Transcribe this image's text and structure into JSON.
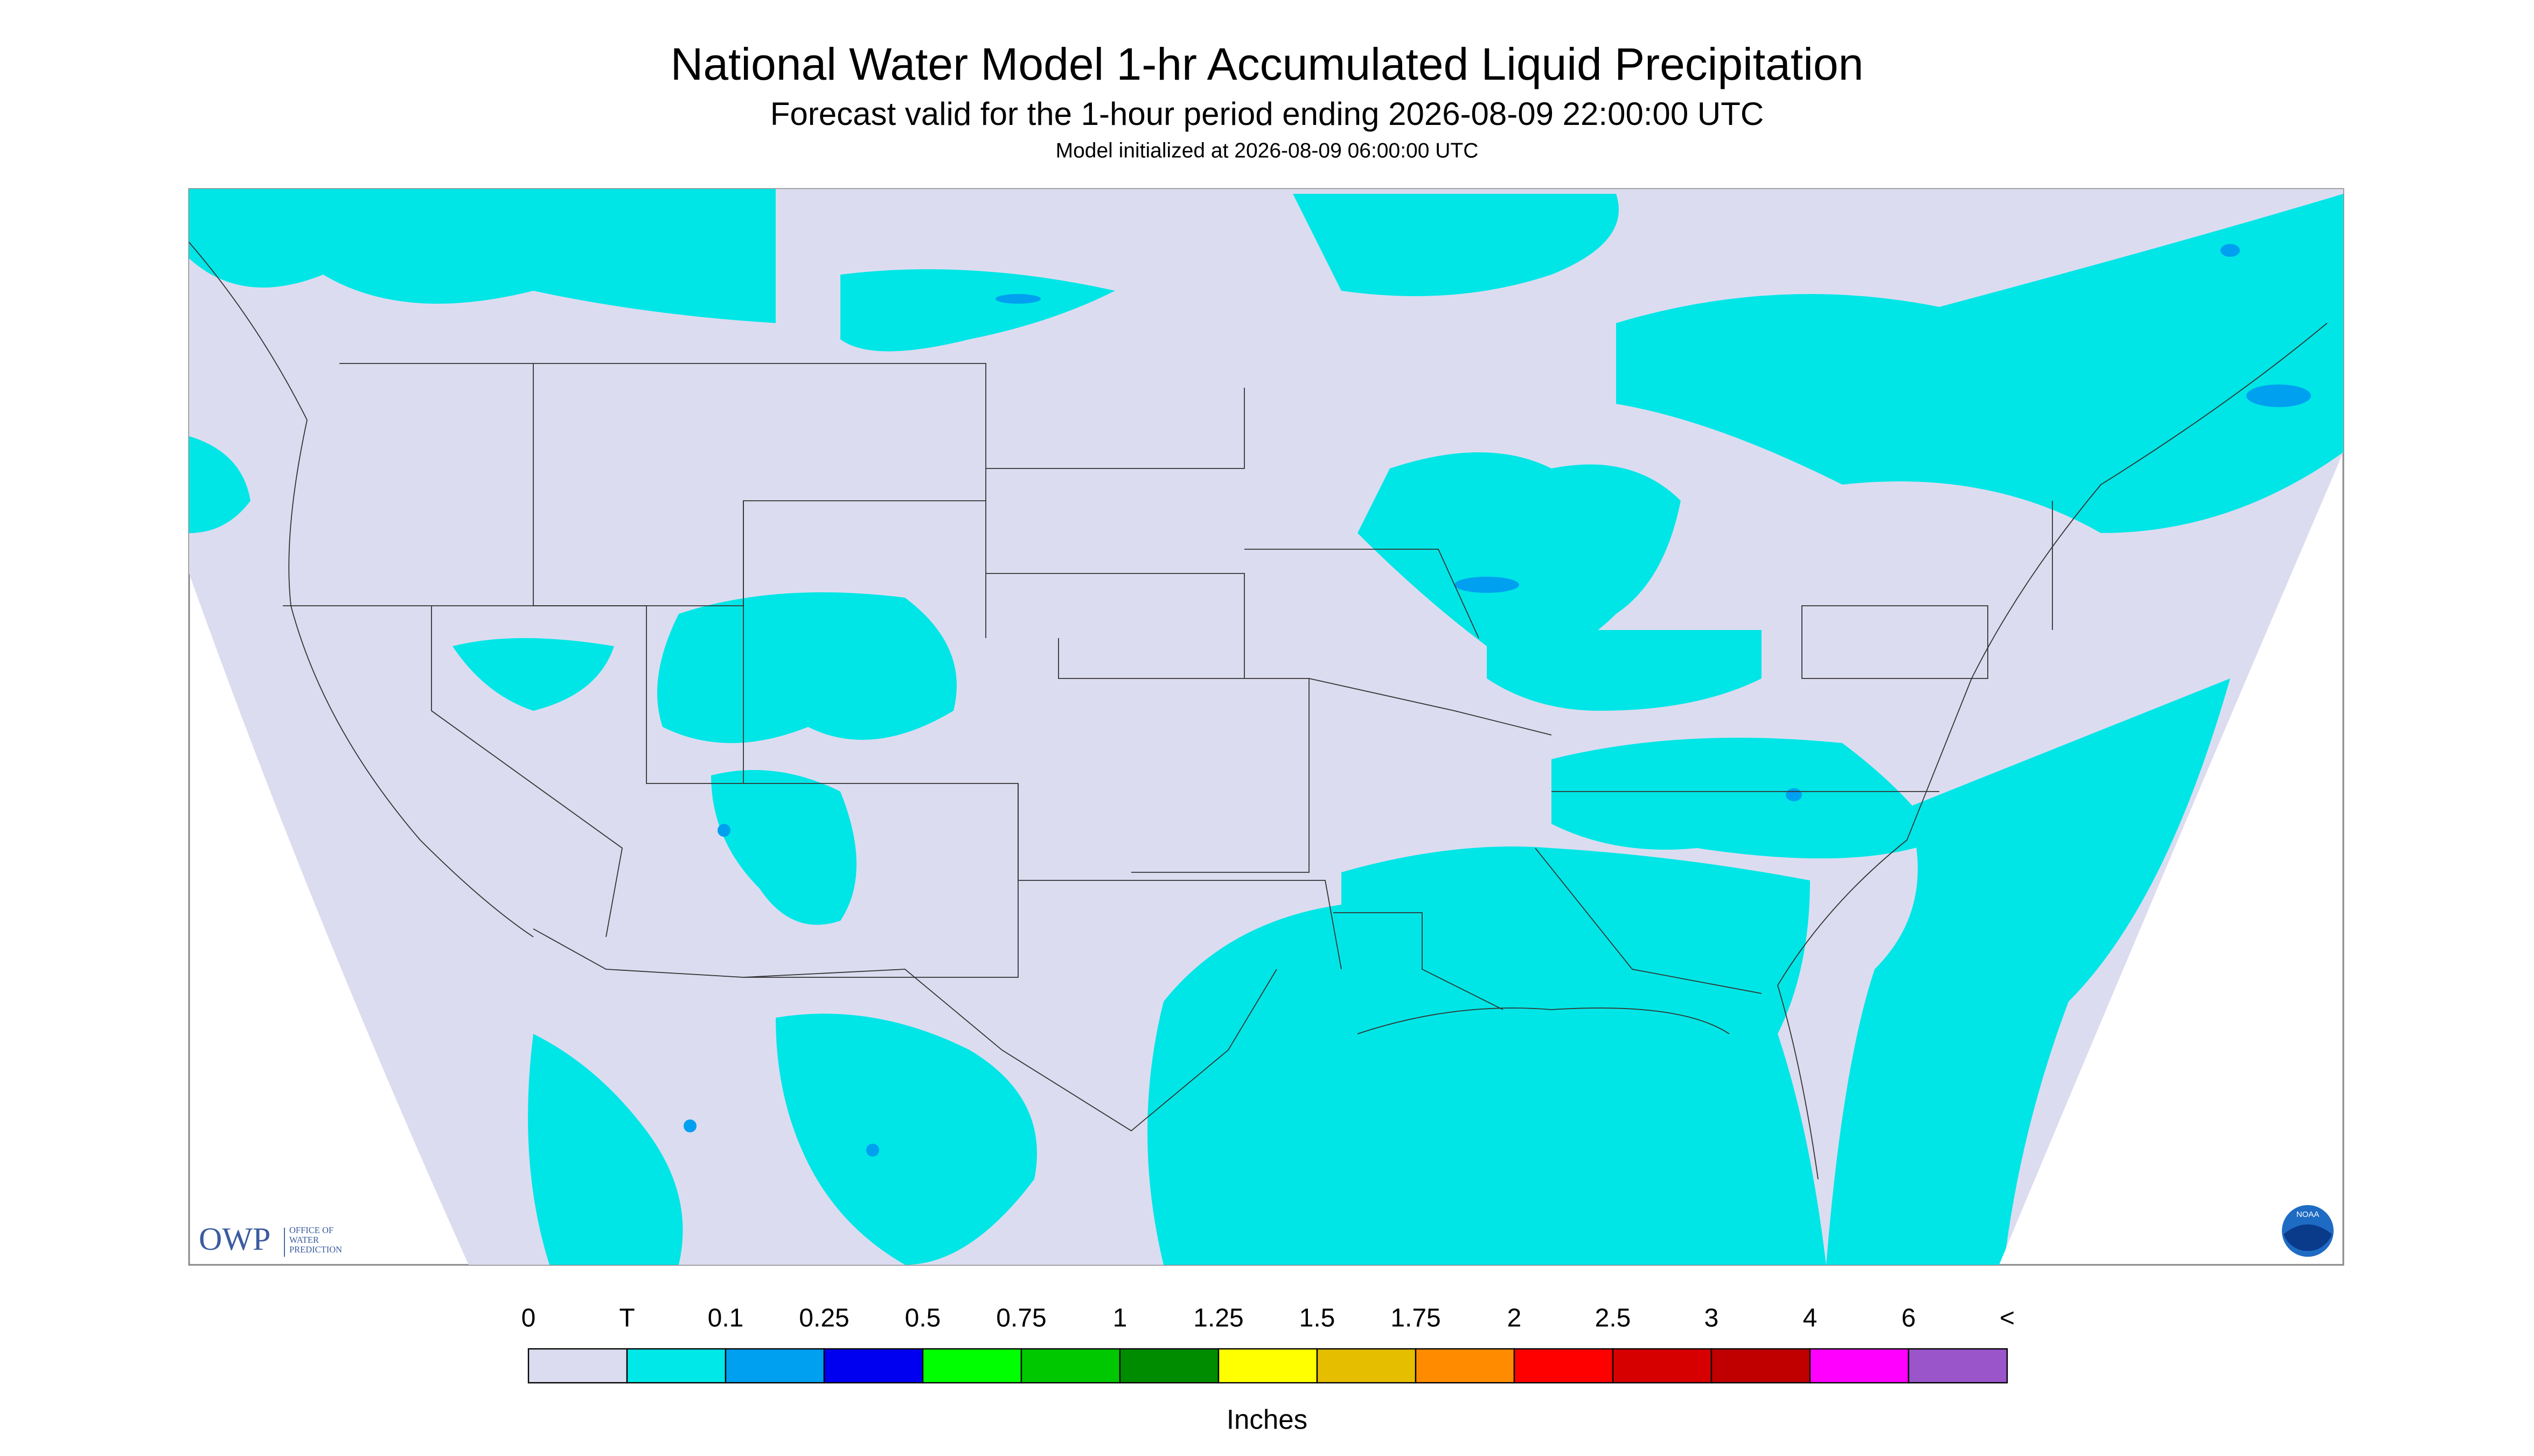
{
  "header": {
    "title": "National Water Model 1-hr Accumulated Liquid Precipitation",
    "subtitle": "Forecast valid for the 1-hour period ending 2026-08-09 22:00:00 UTC",
    "initialized": "Model initialized at 2026-08-09 06:00:00 UTC"
  },
  "legend": {
    "labels": [
      "0",
      "T",
      "0.1",
      "0.25",
      "0.5",
      "0.75",
      "1",
      "1.25",
      "1.5",
      "1.75",
      "2",
      "2.5",
      "3",
      "4",
      "6",
      "<"
    ],
    "colors": [
      "#dcdcf0",
      "#00e8e8",
      "#00a0f0",
      "#0000f0",
      "#00ff00",
      "#00c800",
      "#008c00",
      "#ffff00",
      "#e6be00",
      "#ff8c00",
      "#ff0000",
      "#d70000",
      "#c00000",
      "#ff00ff",
      "#9955c9"
    ],
    "unit": "Inches"
  },
  "logo": {
    "acronym": "OWP",
    "name_lines": [
      "OFFICE OF",
      "WATER",
      "PREDICTION"
    ]
  },
  "noaa": "NOAA"
}
